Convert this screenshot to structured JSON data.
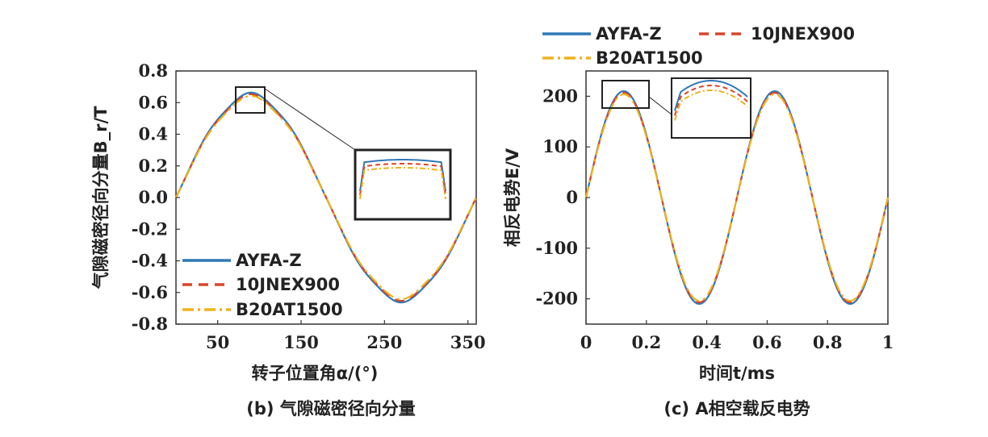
{
  "colors": {
    "AYFA-Z": "#2f78b8",
    "10JNEX900": "#d9452b",
    "B20AT1500": "#edb21e"
  },
  "chart_data": [
    {
      "type": "line",
      "caption": "(b) 气隙磁密径向分量",
      "xlabel": "转子位置角α/(°)",
      "ylabel": "气隙磁密径向分量B_r/T",
      "xlim": [
        0,
        360
      ],
      "ylim": [
        -0.8,
        0.8
      ],
      "xticks": [
        "50",
        "150",
        "250",
        "350"
      ],
      "xtick_values": [
        50,
        150,
        250,
        350
      ],
      "yticks": [
        "0.8",
        "0.6",
        "0.4",
        "0.2",
        "0.0",
        "-0.2",
        "-0.4",
        "-0.6",
        "-0.8"
      ],
      "ytick_values": [
        0.8,
        0.6,
        0.4,
        0.2,
        0.0,
        -0.2,
        -0.4,
        -0.6,
        -0.8
      ],
      "series": [
        {
          "name": "AYFA-Z",
          "amplitude": 0.65,
          "style": "solid"
        },
        {
          "name": "10JNEX900",
          "amplitude": 0.64,
          "style": "dashed"
        },
        {
          "name": "B20AT1500",
          "amplitude": 0.63,
          "style": "dashdot"
        }
      ],
      "legend": [
        "AYFA-Z",
        "10JNEX900",
        "B20AT1500"
      ],
      "legend_position": "bottom-left",
      "grid": false
    },
    {
      "type": "line",
      "caption": "(c) A相空载反电势",
      "xlabel": "时间t/ms",
      "ylabel": "相反电势E/V",
      "xlim": [
        0,
        1
      ],
      "ylim": [
        -250,
        250
      ],
      "xticks": [
        "0",
        "0.2",
        "0.4",
        "0.6",
        "0.8",
        "1"
      ],
      "xtick_values": [
        0,
        0.2,
        0.4,
        0.6,
        0.8,
        1
      ],
      "yticks": [
        "200",
        "100",
        "0",
        "-100",
        "-200"
      ],
      "ytick_values": [
        200,
        100,
        0,
        -100,
        -200
      ],
      "series": [
        {
          "name": "AYFA-Z",
          "amplitude": 210,
          "style": "solid"
        },
        {
          "name": "10JNEX900",
          "amplitude": 207,
          "style": "dashed"
        },
        {
          "name": "B20AT1500",
          "amplitude": 204,
          "style": "dashdot"
        }
      ],
      "legend": [
        "AYFA-Z",
        "10JNEX900",
        "B20AT1500"
      ],
      "legend_position": "top",
      "grid": false
    }
  ]
}
